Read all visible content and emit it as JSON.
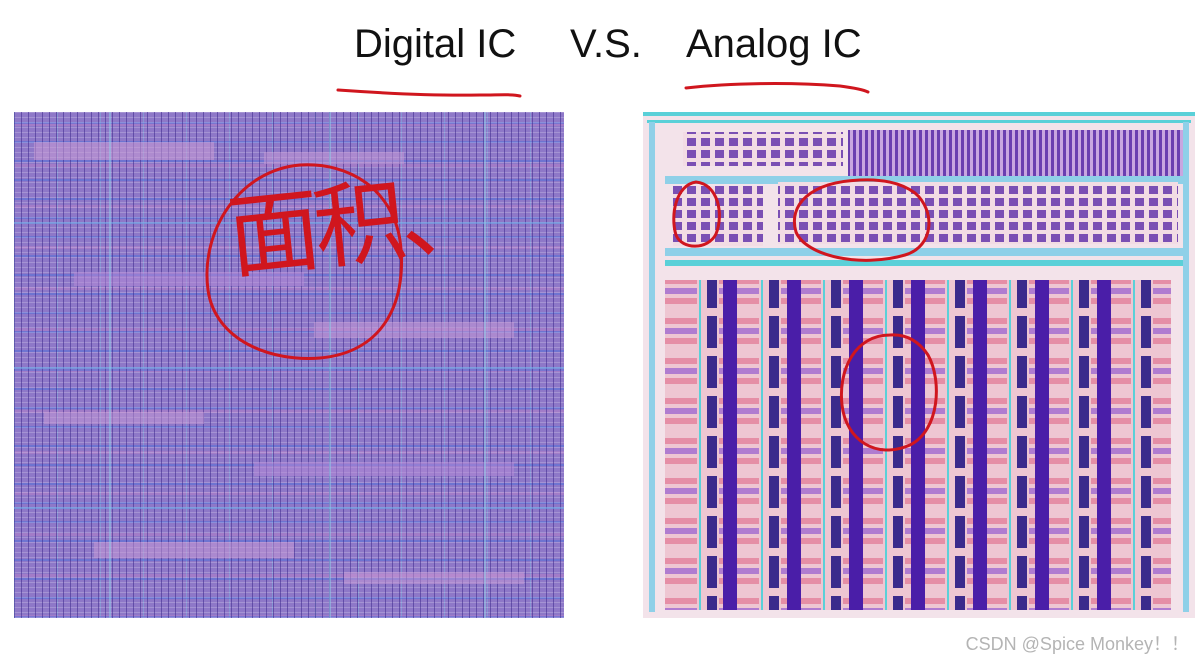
{
  "title": {
    "left": "Digital IC",
    "middle": "V.S.",
    "right": "Analog IC"
  },
  "annotation": {
    "handwriting": "面积、",
    "ink_color": "#d0161e"
  },
  "figures": {
    "digital_layout": {
      "fill": "#8e78c8",
      "grid": "#4b3a9c"
    },
    "analog_layout": {
      "block_fill": "#5a2fa0",
      "stripe_fill": "#e9a7b8",
      "wire_color": "#5ad0d8"
    }
  },
  "watermark": "CSDN @Spice Monkey！！"
}
